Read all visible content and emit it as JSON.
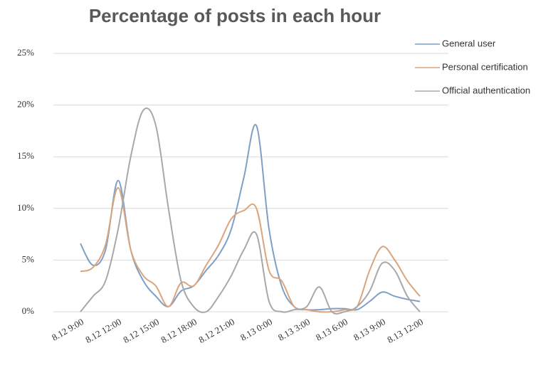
{
  "chart_data": {
    "type": "line",
    "title": "Percentage of posts in each hour",
    "categories": [
      "8.12 9:00",
      null,
      null,
      "8.12 12:00",
      null,
      null,
      "8.12 15:00",
      null,
      null,
      "8.12 18:00",
      null,
      null,
      "8.12 21:00",
      null,
      null,
      "8.13 0:00",
      null,
      null,
      "8.13 3:00",
      null,
      null,
      "8.13 6:00",
      null,
      null,
      "8.13 9:00",
      null,
      null,
      "8.13 12:00"
    ],
    "series": [
      {
        "name": "General user",
        "color": "#7f9fc6",
        "values": [
          6.6,
          4.5,
          6,
          12.7,
          6,
          3,
          1.5,
          0.5,
          2,
          2.5,
          4,
          5.5,
          8,
          13,
          18,
          8,
          2.5,
          0.5,
          0.2,
          0.2,
          0.3,
          0.3,
          0.2,
          1,
          1.9,
          1.5,
          1.2,
          1
        ]
      },
      {
        "name": "Personal certification",
        "color": "#dba47c",
        "values": [
          3.9,
          4.3,
          6.5,
          12,
          6,
          3.5,
          2.5,
          0.5,
          2.8,
          2.5,
          4.5,
          6.5,
          9,
          9.8,
          10,
          4,
          3,
          0.5,
          0.2,
          0,
          0,
          0.2,
          0.5,
          4,
          6.3,
          5,
          3,
          1.5
        ]
      },
      {
        "name": "Official authentication",
        "color": "#a8a8a8",
        "values": [
          0,
          1.5,
          3,
          8,
          15,
          19.5,
          18,
          10,
          3,
          0.5,
          0,
          1.5,
          3.5,
          6,
          7.5,
          1,
          0,
          0.2,
          0.5,
          2.4,
          0,
          0,
          0.5,
          2,
          4.7,
          4,
          1.5,
          0
        ]
      }
    ],
    "ylim": [
      0,
      25
    ],
    "yticks": [
      {
        "value": 0,
        "label": "0%"
      },
      {
        "value": 5,
        "label": "5%"
      },
      {
        "value": 10,
        "label": "10%"
      },
      {
        "value": 15,
        "label": "15%"
      },
      {
        "value": 20,
        "label": "20%"
      },
      {
        "value": 25,
        "label": "25%"
      }
    ],
    "grid": true,
    "legend": "top-right"
  }
}
